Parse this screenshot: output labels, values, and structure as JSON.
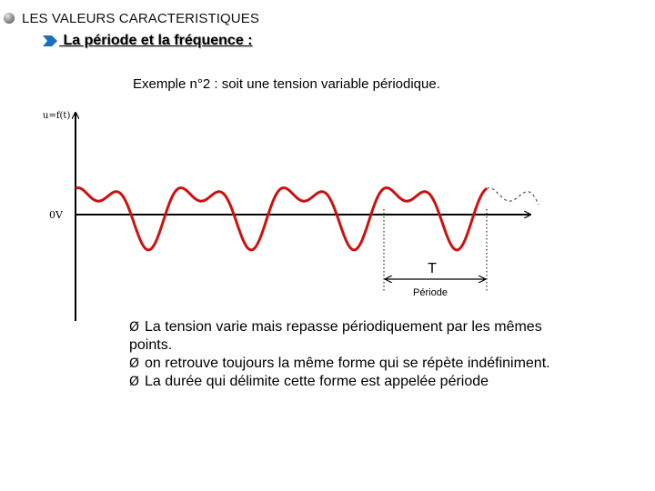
{
  "header": {
    "title": "LES VALEURS CARACTERISTIQUES",
    "icon": "sphere-bullet-icon"
  },
  "subheader": {
    "text": " La période et la fréquence :",
    "icon": "right-arrow-icon",
    "arrow_color": "#1a6fc0"
  },
  "example": {
    "text": "Exemple n°2 : soit une tension variable périodique."
  },
  "figure": {
    "y_axis_label": "u=f(t)",
    "zero_label": "0V",
    "period_symbol": "T",
    "period_label": "Période",
    "wave_color": "#cc1111",
    "continuation_color": "#555555",
    "periods_solid": 4
  },
  "bullets": [
    {
      "text": "La tension varie mais repasse périodiquement par les mêmes points."
    },
    {
      "text": "on retrouve toujours la même forme qui se répète indéfiniment."
    },
    {
      "text": "La durée qui délimite cette forme est appelée période"
    }
  ],
  "bullet_glyph": "Ø"
}
